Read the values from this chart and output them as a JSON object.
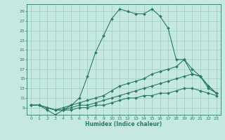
{
  "xlabel": "Humidex (Indice chaleur)",
  "bg_color": "#c5e8e0",
  "line_color": "#2a7a6a",
  "grid_color": "#a0ccc4",
  "xlim": [
    -0.5,
    23.5
  ],
  "ylim": [
    7.5,
    30.5
  ],
  "yticks": [
    9,
    11,
    13,
    15,
    17,
    19,
    21,
    23,
    25,
    27,
    29
  ],
  "xticks": [
    0,
    1,
    2,
    3,
    4,
    5,
    6,
    7,
    8,
    9,
    10,
    11,
    12,
    13,
    14,
    15,
    16,
    17,
    18,
    19,
    20,
    21,
    22,
    23
  ],
  "series": [
    {
      "x": [
        0,
        1,
        2,
        3,
        4,
        5,
        6,
        7,
        8,
        9,
        10,
        11,
        12,
        13,
        14,
        15,
        16,
        17,
        18,
        19,
        20,
        21,
        22,
        23
      ],
      "y": [
        9.5,
        9.5,
        8.5,
        7.5,
        8.5,
        9.5,
        11,
        15.5,
        20.5,
        24,
        27.5,
        29.5,
        29,
        28.5,
        28.5,
        29.5,
        28,
        25.5,
        19,
        19,
        16,
        15.5,
        13.5,
        12
      ]
    },
    {
      "x": [
        0,
        1,
        2,
        3,
        4,
        5,
        6,
        7,
        8,
        9,
        10,
        11,
        12,
        13,
        14,
        15,
        16,
        17,
        18,
        19,
        20,
        21,
        22,
        23
      ],
      "y": [
        9.5,
        9.5,
        9,
        8.5,
        9,
        9.5,
        10,
        10.5,
        11,
        11.5,
        12.5,
        13.5,
        14,
        14.5,
        15,
        16,
        16.5,
        17,
        17.5,
        19,
        17,
        15.5,
        13,
        12
      ]
    },
    {
      "x": [
        0,
        1,
        2,
        3,
        4,
        5,
        6,
        7,
        8,
        9,
        10,
        11,
        12,
        13,
        14,
        15,
        16,
        17,
        18,
        19,
        20,
        21,
        22,
        23
      ],
      "y": [
        9.5,
        9.5,
        9,
        8.5,
        8.5,
        9,
        9.5,
        9.5,
        10,
        10.5,
        11,
        11.5,
        12,
        12.5,
        13,
        13.5,
        14,
        14.5,
        15,
        15.5,
        16,
        15.5,
        13.5,
        12
      ]
    },
    {
      "x": [
        0,
        1,
        2,
        3,
        4,
        5,
        6,
        7,
        8,
        9,
        10,
        11,
        12,
        13,
        14,
        15,
        16,
        17,
        18,
        19,
        20,
        21,
        22,
        23
      ],
      "y": [
        9.5,
        9.5,
        9,
        8.5,
        8.5,
        8.5,
        9,
        9,
        9.5,
        9.5,
        10,
        10.5,
        11,
        11,
        11.5,
        11.5,
        12,
        12,
        12.5,
        13,
        13,
        12.5,
        12,
        11.5
      ]
    }
  ]
}
